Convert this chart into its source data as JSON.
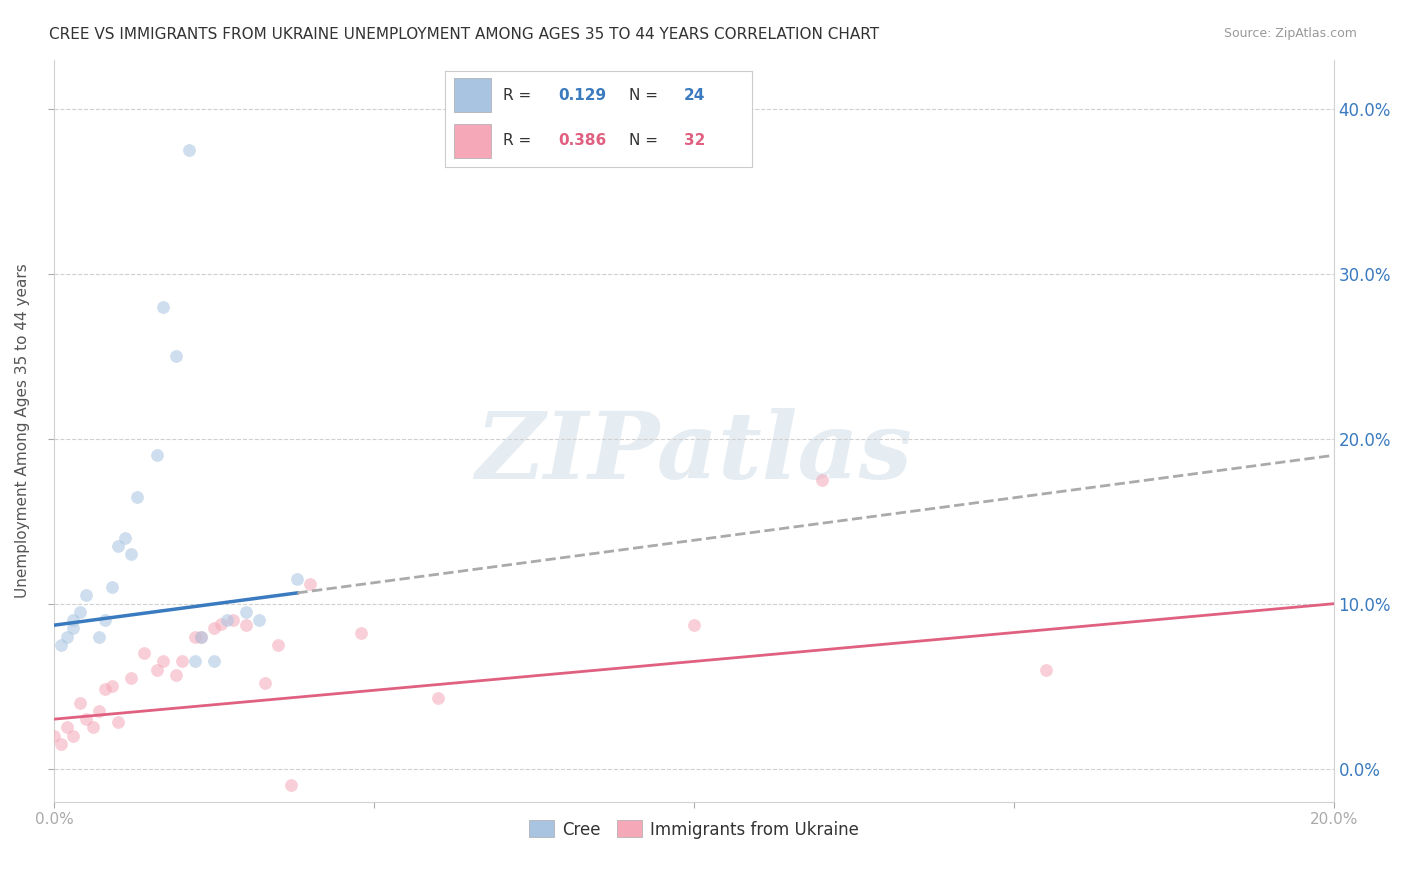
{
  "title": "CREE VS IMMIGRANTS FROM UKRAINE UNEMPLOYMENT AMONG AGES 35 TO 44 YEARS CORRELATION CHART",
  "source": "Source: ZipAtlas.com",
  "ylabel": "Unemployment Among Ages 35 to 44 years",
  "xlim": [
    0.0,
    0.2
  ],
  "ylim": [
    -0.02,
    0.43
  ],
  "x_ticks": [
    0.0,
    0.05,
    0.1,
    0.15,
    0.2
  ],
  "y_ticks": [
    0.0,
    0.1,
    0.2,
    0.3,
    0.4
  ],
  "cree_R": 0.129,
  "cree_N": 24,
  "ukraine_R": 0.386,
  "ukraine_N": 32,
  "cree_color": "#a8c4e0",
  "ukraine_color": "#f4a8b8",
  "cree_line_color": "#3a7abf",
  "ukraine_line_color": "#e06080",
  "cree_x": [
    0.001,
    0.002,
    0.003,
    0.003,
    0.004,
    0.005,
    0.007,
    0.008,
    0.009,
    0.01,
    0.011,
    0.012,
    0.013,
    0.016,
    0.017,
    0.019,
    0.021,
    0.022,
    0.023,
    0.025,
    0.027,
    0.03,
    0.032,
    0.038
  ],
  "cree_y": [
    0.075,
    0.08,
    0.085,
    0.09,
    0.095,
    0.105,
    0.08,
    0.09,
    0.11,
    0.135,
    0.14,
    0.13,
    0.165,
    0.19,
    0.28,
    0.25,
    0.375,
    0.065,
    0.08,
    0.065,
    0.09,
    0.095,
    0.09,
    0.115
  ],
  "ukraine_x": [
    0.0,
    0.001,
    0.002,
    0.003,
    0.004,
    0.005,
    0.006,
    0.007,
    0.008,
    0.009,
    0.01,
    0.012,
    0.014,
    0.016,
    0.017,
    0.019,
    0.02,
    0.022,
    0.023,
    0.025,
    0.026,
    0.028,
    0.03,
    0.033,
    0.035,
    0.037,
    0.04,
    0.048,
    0.06,
    0.1,
    0.12,
    0.155
  ],
  "ukraine_y": [
    0.02,
    0.015,
    0.025,
    0.02,
    0.04,
    0.03,
    0.025,
    0.035,
    0.048,
    0.05,
    0.028,
    0.055,
    0.07,
    0.06,
    0.065,
    0.057,
    0.065,
    0.08,
    0.08,
    0.085,
    0.088,
    0.09,
    0.087,
    0.052,
    0.075,
    -0.01,
    0.112,
    0.082,
    0.043,
    0.087,
    0.175,
    0.06
  ],
  "cree_line_y0": 0.087,
  "cree_line_y1": 0.19,
  "ukraine_line_y0": 0.03,
  "ukraine_line_y1": 0.1,
  "background_color": "#ffffff",
  "grid_color": "#d0d0d0",
  "marker_size": 85,
  "marker_alpha": 0.55
}
